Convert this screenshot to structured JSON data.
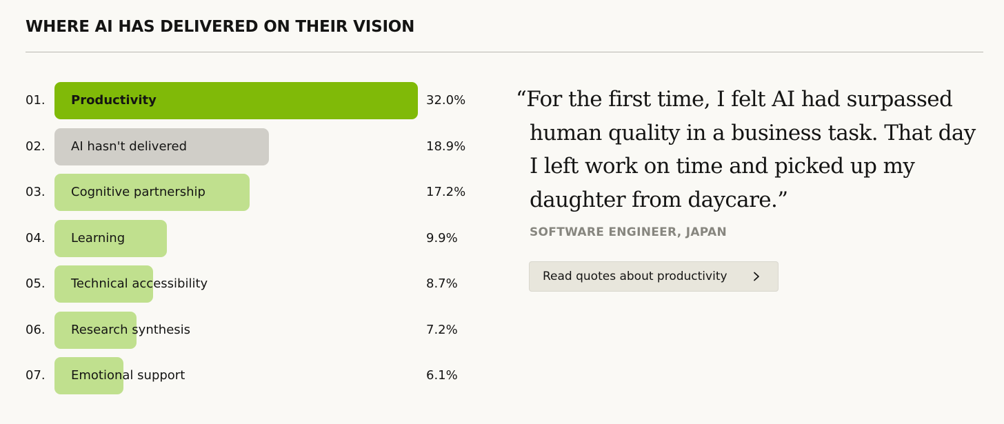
{
  "header": {
    "title": "WHERE AI HAS DELIVERED ON THEIR VISION"
  },
  "colors": {
    "highlight_bar": "#80ba08",
    "default_bar": "#c0e08e",
    "neutral_bar": "#d0cec8",
    "background": "#faf9f5"
  },
  "chart_data": {
    "type": "bar",
    "orientation": "horizontal",
    "title": "WHERE AI HAS DELIVERED ON THEIR VISION",
    "unit": "%",
    "xlim": [
      0,
      32.0
    ],
    "ranks": [
      "01.",
      "02.",
      "03.",
      "04.",
      "05.",
      "06.",
      "07."
    ],
    "categories": [
      "Productivity",
      "AI hasn't delivered",
      "Cognitive partnership",
      "Learning",
      "Technical accessibility",
      "Research synthesis",
      "Emotional support"
    ],
    "values": [
      32.0,
      18.9,
      17.2,
      9.9,
      8.7,
      7.2,
      6.1
    ],
    "value_labels": [
      "32.0%",
      "18.9%",
      "17.2%",
      "9.9%",
      "8.7%",
      "7.2%",
      "6.1%"
    ],
    "bar_styles": [
      "highlight",
      "neutral",
      "default",
      "default",
      "default",
      "default",
      "default"
    ]
  },
  "quote": {
    "lines": [
      "“For the first time, I felt AI had surpassed",
      "human quality in a business task. That day",
      "I left work on time and picked up my",
      "daughter from daycare.”"
    ],
    "attribution": "SOFTWARE ENGINEER, JAPAN"
  },
  "actions": {
    "read_quotes_label": "Read quotes about productivity",
    "read_quotes_icon": "chevron-right-icon"
  }
}
